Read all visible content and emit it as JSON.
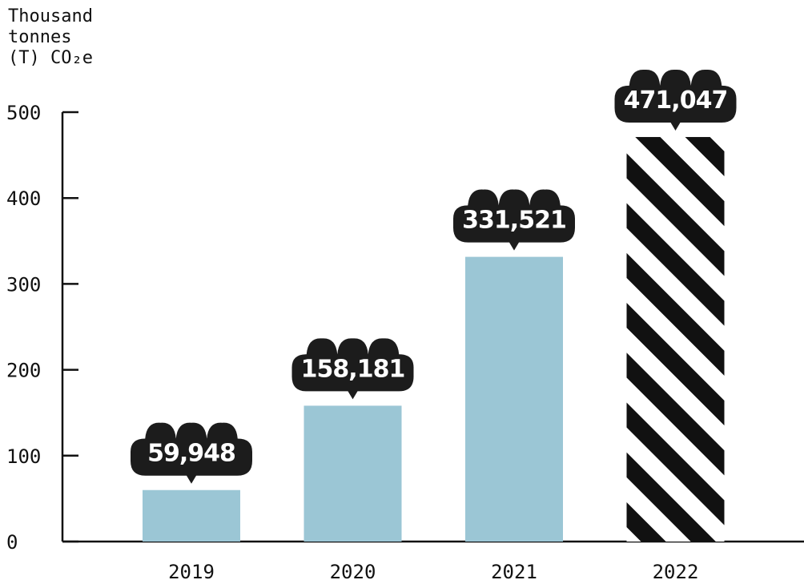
{
  "chart_data": {
    "type": "bar",
    "ylabel_lines": [
      "Thousand",
      "tonnes",
      "(T) CO₂e"
    ],
    "categories": [
      "2019",
      "2020",
      "2021",
      "2022"
    ],
    "values": [
      59.948,
      158.181,
      331.521,
      471.047
    ],
    "data_labels": [
      "59,948",
      "158,181",
      "331,521",
      "471,047"
    ],
    "bar_styles": [
      "solid",
      "solid",
      "solid",
      "striped"
    ],
    "ylim": [
      0,
      500
    ],
    "yticks": [
      0,
      100,
      200,
      300,
      400,
      500
    ],
    "grid": false,
    "colors": {
      "bar": "#9bc6d5",
      "stripe_dark": "#111111",
      "stripe_light": "#ffffff",
      "axis": "#111111",
      "bubble": "#1c1c1c"
    }
  }
}
